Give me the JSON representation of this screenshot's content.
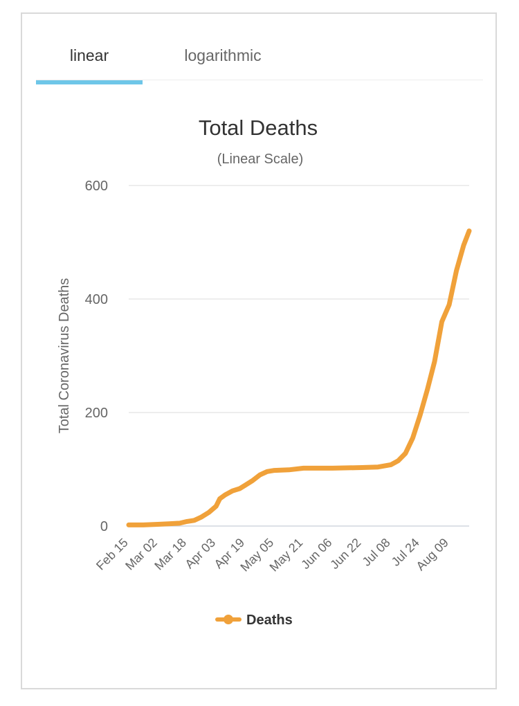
{
  "tabs": [
    {
      "label": "linear",
      "active": true
    },
    {
      "label": "logarithmic",
      "active": false
    }
  ],
  "colors": {
    "series": "#f0a13a",
    "tab_active": "#6ec6e8",
    "grid": "#e2e2e2"
  },
  "chart_data": {
    "type": "line",
    "title": "Total Deaths",
    "subtitle": "(Linear Scale)",
    "xlabel": "",
    "ylabel": "Total Coronavirus Deaths",
    "ylim": [
      0,
      600
    ],
    "yticks": [
      0,
      200,
      400,
      600
    ],
    "xticks": [
      "Feb 15",
      "Mar 02",
      "Mar 18",
      "Apr 03",
      "Apr 19",
      "May 05",
      "May 21",
      "Jun 06",
      "Jun 22",
      "Jul 08",
      "Jul 24",
      "Aug 09"
    ],
    "grid": true,
    "legend": "bottom",
    "series": [
      {
        "name": "Deaths",
        "x": [
          "Feb 15",
          "Feb 23",
          "Mar 02",
          "Mar 08",
          "Mar 14",
          "Mar 18",
          "Mar 22",
          "Mar 26",
          "Mar 30",
          "Apr 03",
          "Apr 05",
          "Apr 08",
          "Apr 12",
          "Apr 16",
          "Apr 19",
          "Apr 23",
          "Apr 27",
          "May 01",
          "May 05",
          "May 13",
          "May 21",
          "Jun 06",
          "Jun 22",
          "Jul 01",
          "Jul 08",
          "Jul 12",
          "Jul 16",
          "Jul 20",
          "Jul 24",
          "Jul 28",
          "Aug 01",
          "Aug 05",
          "Aug 09",
          "Aug 13",
          "Aug 17",
          "Aug 20"
        ],
        "values": [
          2,
          2,
          3,
          4,
          5,
          8,
          10,
          16,
          24,
          35,
          48,
          55,
          62,
          66,
          72,
          80,
          90,
          96,
          98,
          99,
          102,
          102,
          103,
          104,
          108,
          115,
          128,
          155,
          195,
          240,
          290,
          360,
          390,
          450,
          495,
          520
        ]
      }
    ]
  }
}
